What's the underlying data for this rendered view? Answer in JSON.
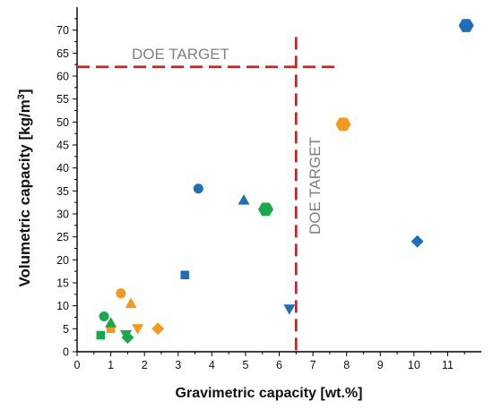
{
  "chart_data": {
    "type": "scatter",
    "xlabel": "Gravimetric capacity [wt.%]",
    "ylabel_parts": [
      "Volumetric capacity [kg/m",
      "3",
      "]"
    ],
    "xlim": [
      0,
      12
    ],
    "ylim": [
      0,
      75
    ],
    "x_ticks": [
      0,
      1,
      2,
      3,
      4,
      5,
      6,
      7,
      8,
      9,
      10,
      11
    ],
    "y_ticks": [
      0,
      5,
      10,
      15,
      20,
      25,
      30,
      35,
      40,
      45,
      50,
      55,
      60,
      65,
      70
    ],
    "grid": false,
    "colors": {
      "blue": "#1f6fb8",
      "orange": "#f39a1e",
      "green": "#1aa84e",
      "target": "#e0191b"
    },
    "doe_target": {
      "x": 6.5,
      "y": 62,
      "label": "DOE TARGET"
    },
    "points": [
      {
        "x": 11.55,
        "y": 71,
        "shape": "hexagon",
        "color": "blue"
      },
      {
        "x": 10.1,
        "y": 24,
        "shape": "diamond",
        "color": "blue"
      },
      {
        "x": 7.9,
        "y": 49.5,
        "shape": "hexagon",
        "color": "orange"
      },
      {
        "x": 5.6,
        "y": 31,
        "shape": "hexagon",
        "color": "green"
      },
      {
        "x": 4.95,
        "y": 33,
        "shape": "triangle",
        "color": "blue"
      },
      {
        "x": 3.6,
        "y": 35.5,
        "shape": "circle",
        "color": "blue"
      },
      {
        "x": 3.2,
        "y": 16.7,
        "shape": "square",
        "color": "blue"
      },
      {
        "x": 6.3,
        "y": 9.3,
        "shape": "triangle-down",
        "color": "blue"
      },
      {
        "x": 1.3,
        "y": 12.7,
        "shape": "circle",
        "color": "orange"
      },
      {
        "x": 1.6,
        "y": 10.5,
        "shape": "triangle",
        "color": "orange"
      },
      {
        "x": 1.8,
        "y": 5,
        "shape": "triangle-down",
        "color": "orange"
      },
      {
        "x": 2.4,
        "y": 5,
        "shape": "diamond",
        "color": "orange"
      },
      {
        "x": 1.0,
        "y": 5,
        "shape": "square",
        "color": "orange"
      },
      {
        "x": 0.8,
        "y": 7.7,
        "shape": "circle",
        "color": "green"
      },
      {
        "x": 1.0,
        "y": 6.3,
        "shape": "triangle",
        "color": "green"
      },
      {
        "x": 0.7,
        "y": 3.6,
        "shape": "square",
        "color": "green"
      },
      {
        "x": 1.45,
        "y": 3.7,
        "shape": "triangle-down",
        "color": "green"
      },
      {
        "x": 1.5,
        "y": 3.1,
        "shape": "diamond",
        "color": "green"
      }
    ]
  }
}
